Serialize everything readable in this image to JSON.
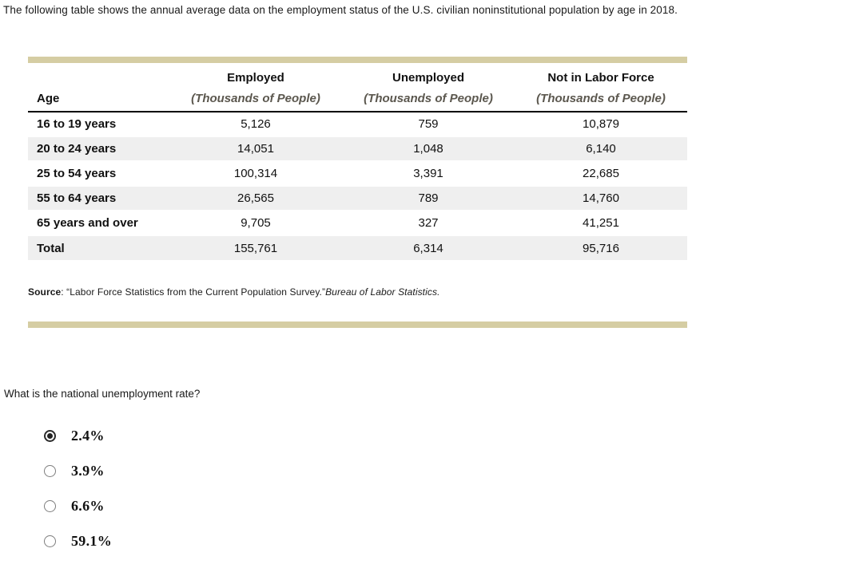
{
  "intro": "The following table shows the annual average data on the employment status of the U.S. civilian noninstitutional population by age in 2018.",
  "table": {
    "columns": {
      "age_header": "Age",
      "groups": [
        {
          "label": "Employed",
          "sub": "(Thousands of People)"
        },
        {
          "label": "Unemployed",
          "sub": "(Thousands of People)"
        },
        {
          "label": "Not in Labor Force",
          "sub": "(Thousands of People)"
        }
      ]
    },
    "rows": [
      {
        "age": "16 to 19 years",
        "employed": "5,126",
        "unemployed": "759",
        "not_in_labor_force": "10,879"
      },
      {
        "age": "20 to 24 years",
        "employed": "14,051",
        "unemployed": "1,048",
        "not_in_labor_force": "6,140"
      },
      {
        "age": "25 to 54 years",
        "employed": "100,314",
        "unemployed": "3,391",
        "not_in_labor_force": "22,685"
      },
      {
        "age": "55 to 64 years",
        "employed": "26,565",
        "unemployed": "789",
        "not_in_labor_force": "14,760"
      },
      {
        "age": "65 years and over",
        "employed": "9,705",
        "unemployed": "327",
        "not_in_labor_force": "41,251"
      },
      {
        "age": "Total",
        "employed": "155,761",
        "unemployed": "6,314",
        "not_in_labor_force": "95,716"
      }
    ],
    "source": {
      "label": "Source",
      "text": ": “Labor Force Statistics from the Current Population Survey.”",
      "citation": "Bureau of Labor Statistics."
    }
  },
  "question": {
    "text": "What is the national unemployment rate?",
    "options": [
      {
        "label": "2.4%",
        "selected": true
      },
      {
        "label": "3.9%",
        "selected": false
      },
      {
        "label": "6.6%",
        "selected": false
      },
      {
        "label": "59.1%",
        "selected": false
      }
    ]
  },
  "colors": {
    "divider_tan": "#d5cda3",
    "row_alt_gray": "#efefef",
    "header_sub_text": "#5b574e",
    "text_primary": "#1a1a1a"
  }
}
